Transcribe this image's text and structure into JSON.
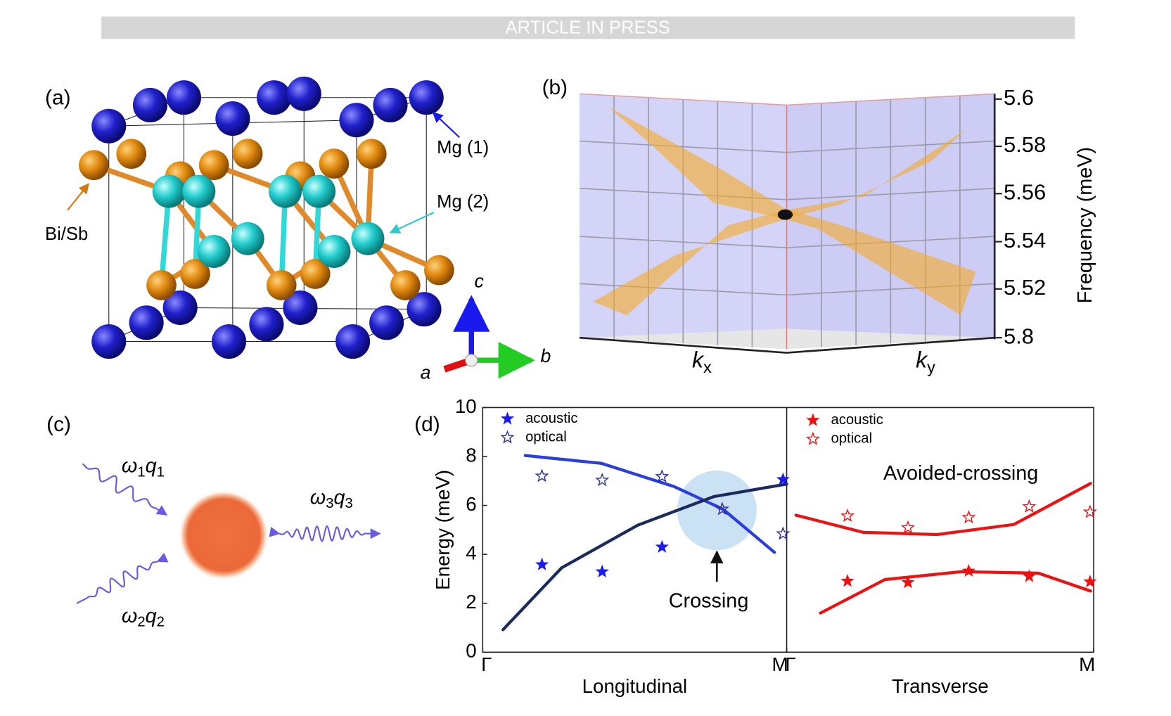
{
  "banner": "ARTICLE IN PRESS",
  "panel_a": {
    "label": "(a)",
    "atoms": [
      "Mg (1)",
      "Mg (2)",
      "Bi/Sb"
    ],
    "axes": [
      "c",
      "b",
      "a"
    ]
  },
  "panel_b": {
    "label": "(b)",
    "axis_title": "Frequency (meV)",
    "tick_labels": [
      "5.6",
      "5.58",
      "5.56",
      "5.54",
      "5.52",
      "5.8"
    ],
    "x_axes": [
      {
        "k": "k",
        "sub": "x"
      },
      {
        "k": "k",
        "sub": "y"
      }
    ]
  },
  "panel_c": {
    "label": "(c)",
    "waves": [
      [
        "ω",
        "1",
        "q",
        "1"
      ],
      [
        "ω",
        "2",
        "q",
        "2"
      ],
      [
        "ω",
        "3",
        "q",
        "3"
      ]
    ]
  },
  "panel_d": {
    "label": "(d)",
    "annotations": [
      "Crossing",
      "Avoided-crossing"
    ]
  },
  "chart_data": [
    {
      "type": "scatter",
      "xlabel": "Longitudinal",
      "ylabel": "Energy (meV)",
      "xlim": [
        0,
        1
      ],
      "xticks": [
        {
          "value": 0,
          "label": "Γ"
        },
        {
          "value": 1,
          "label": "M"
        }
      ],
      "ylim": [
        0,
        10
      ],
      "yticks": [
        0,
        2,
        4,
        6,
        8,
        10
      ],
      "series": [
        {
          "name": "acoustic",
          "color": "#1a1aee",
          "marker": "filled",
          "x": [
            0.195,
            0.393,
            0.59,
            0.988
          ],
          "values": [
            3.58,
            3.29,
            4.3,
            7.06
          ]
        },
        {
          "name": "optical",
          "color": "#2a2a9a",
          "marker": "open",
          "x": [
            0.195,
            0.393,
            0.59,
            0.788,
            0.988
          ],
          "values": [
            7.2,
            7.03,
            7.18,
            5.85,
            4.84
          ]
        }
      ],
      "lines": [
        {
          "color": "#2a3ddd",
          "x": [
            0.14,
            0.39,
            0.63,
            0.79,
            0.96
          ],
          "values": [
            8.04,
            7.72,
            6.77,
            5.85,
            4.08
          ]
        },
        {
          "color": "#1a2a5a",
          "x": [
            0.067,
            0.26,
            0.51,
            0.76,
            1.0
          ],
          "values": [
            0.92,
            3.45,
            5.19,
            6.36,
            6.87
          ]
        }
      ]
    },
    {
      "type": "scatter",
      "xlabel": "Transverse",
      "xlim": [
        0,
        1
      ],
      "xticks": [
        {
          "value": 0,
          "label": "Γ"
        },
        {
          "value": 1,
          "label": "M"
        }
      ],
      "ylim": [
        0,
        10
      ],
      "series": [
        {
          "name": "acoustic",
          "color": "#ee1111",
          "marker": "filled",
          "x": [
            0.198,
            0.395,
            0.593,
            0.79,
            0.988
          ],
          "values": [
            2.91,
            2.85,
            3.32,
            3.1,
            2.88
          ]
        },
        {
          "name": "optical",
          "color": "#ee1111",
          "marker": "open",
          "x": [
            0.198,
            0.395,
            0.593,
            0.79,
            0.988
          ],
          "values": [
            5.57,
            5.09,
            5.51,
            5.95,
            5.73
          ]
        }
      ],
      "lines": [
        {
          "color": "#ee1111",
          "x": [
            0.03,
            0.25,
            0.49,
            0.74,
            0.99
          ],
          "values": [
            5.6,
            4.9,
            4.81,
            5.22,
            6.9
          ]
        },
        {
          "color": "#ee1111",
          "x": [
            0.11,
            0.32,
            0.57,
            0.82,
            0.99
          ],
          "values": [
            1.6,
            2.97,
            3.29,
            3.23,
            2.5
          ]
        }
      ]
    }
  ]
}
